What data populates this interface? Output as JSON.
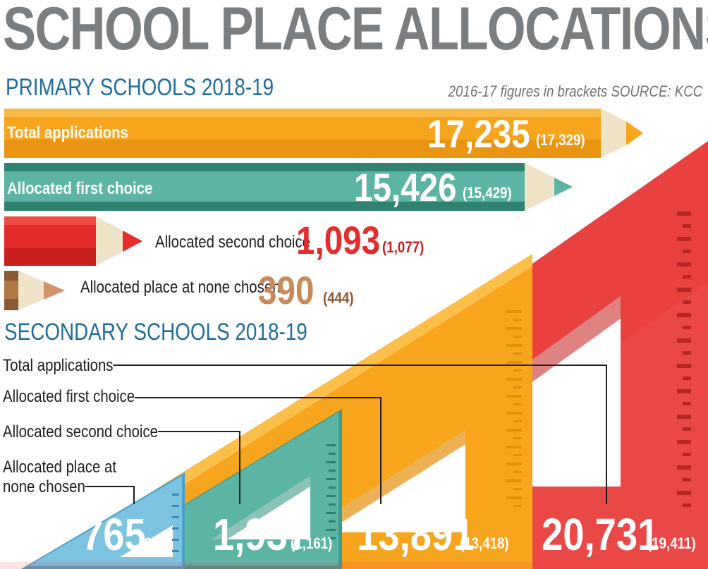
{
  "title": "SCHOOL PLACE ALLOCATIONS",
  "source_note": "2016-17 figures in brackets SOURCE: KCC",
  "primary": {
    "heading": "PRIMARY SCHOOLS 2018-19",
    "rows": [
      {
        "label": "Total applications",
        "value": "17,235",
        "previous": "(17,329)",
        "color": "#f7a51d"
      },
      {
        "label": "Allocated first choice",
        "value": "15,426",
        "previous": "(15,429)",
        "color": "#5bb4a4"
      },
      {
        "label": "Allocated second choice",
        "value": "1,093",
        "previous": "(1,077)",
        "color": "#e32c2b"
      },
      {
        "label": "Allocated place at none chosen",
        "value": "390",
        "previous": "(444)",
        "color": "#c98a5a"
      }
    ]
  },
  "secondary": {
    "heading": "SECONDARY SCHOOLS 2018-19",
    "labels": {
      "total": "Total applications",
      "first": "Allocated first choice",
      "second": "Allocated second choice",
      "none_line1": "Allocated place at",
      "none_line2": "none chosen"
    },
    "values": {
      "none": {
        "value": "765",
        "previous": "(633)"
      },
      "second": {
        "value": "1,937",
        "previous": "(1,161)"
      },
      "first": {
        "value": "13,891",
        "previous": "(13,418)"
      },
      "total": {
        "value": "20,731",
        "previous": "(19,411)"
      }
    }
  }
}
